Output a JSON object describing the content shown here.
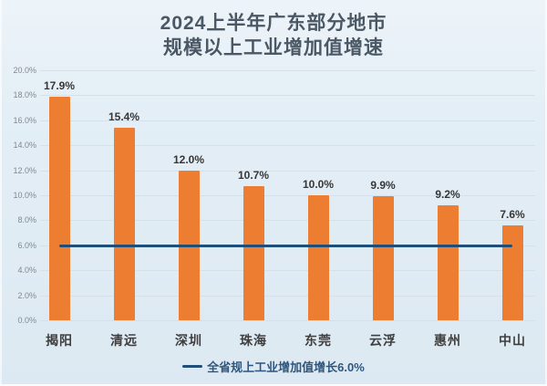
{
  "title": {
    "line1": "2024上半年广东部分地市",
    "line2": "规模以上工业增加值增速"
  },
  "legend": {
    "label": "全省规上工业增加值增长6.0%"
  },
  "colors": {
    "background": "#e3eef6",
    "bar": "#ED7D31",
    "gridline": "#d3e1ec",
    "reference_line": "#1F4E79",
    "title_text": "#4a5764",
    "value_label_text": "#363636",
    "category_text": "#3f3f3f",
    "tick_text": "#82888f",
    "legend_text": "#2e567e"
  },
  "chart_data": {
    "type": "bar",
    "title": "2024上半年广东部分地市规模以上工业增加值增速",
    "categories": [
      "揭阳",
      "清远",
      "深圳",
      "珠海",
      "东莞",
      "云浮",
      "惠州",
      "中山"
    ],
    "values": [
      17.9,
      15.4,
      12.0,
      10.7,
      10.0,
      9.9,
      9.2,
      7.6
    ],
    "value_labels": [
      "17.9%",
      "15.4%",
      "12.0%",
      "10.7%",
      "10.0%",
      "9.9%",
      "9.2%",
      "7.6%"
    ],
    "xlabel": "",
    "ylabel": "",
    "ylim": [
      0,
      20
    ],
    "ytick_step": 2,
    "ytick_labels": [
      "0.0%",
      "2.0%",
      "4.0%",
      "6.0%",
      "8.0%",
      "10.0%",
      "12.0%",
      "14.0%",
      "16.0%",
      "18.0%",
      "20.0%"
    ],
    "grid": true,
    "legend_position": "bottom",
    "reference_line": {
      "value": 6.0,
      "label": "全省规上工业增加值增长6.0%"
    }
  }
}
